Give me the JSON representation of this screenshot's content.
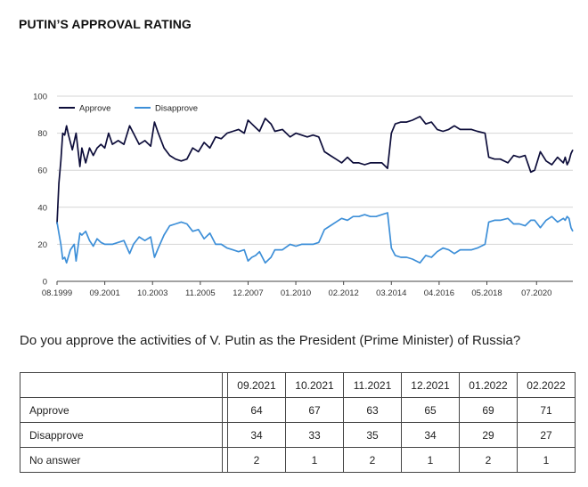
{
  "page": {
    "title": "PUTIN’S APPROVAL RATING"
  },
  "chart_data": {
    "type": "line",
    "title": "PUTIN’S APPROVAL RATING",
    "xlabel": "",
    "ylabel": "",
    "ylim": [
      0,
      100
    ],
    "yticks": [
      0,
      20,
      40,
      60,
      80,
      100
    ],
    "xticks": [
      "08.1999",
      "09.2001",
      "10.2003",
      "11.2005",
      "12.2007",
      "01.2010",
      "02.2012",
      "03.2014",
      "04.2016",
      "05.2018",
      "07.2020"
    ],
    "grid": true,
    "legend": "top-left",
    "x_range": [
      "1999-08",
      "2022-02"
    ],
    "series": [
      {
        "name": "Approve",
        "color": "#0d0d3a",
        "points": [
          [
            "1999-08",
            31
          ],
          [
            "1999-09",
            53
          ],
          [
            "1999-10",
            65
          ],
          [
            "1999-11",
            80
          ],
          [
            "1999-12",
            79
          ],
          [
            "2000-01",
            84
          ],
          [
            "2000-02",
            79
          ],
          [
            "2000-04",
            71
          ],
          [
            "2000-06",
            80
          ],
          [
            "2000-08",
            62
          ],
          [
            "2000-09",
            72
          ],
          [
            "2000-11",
            64
          ],
          [
            "2001-01",
            72
          ],
          [
            "2001-03",
            68
          ],
          [
            "2001-05",
            72
          ],
          [
            "2001-07",
            74
          ],
          [
            "2001-09",
            72
          ],
          [
            "2001-11",
            80
          ],
          [
            "2002-01",
            74
          ],
          [
            "2002-04",
            76
          ],
          [
            "2002-07",
            74
          ],
          [
            "2002-10",
            84
          ],
          [
            "2002-12",
            80
          ],
          [
            "2003-03",
            74
          ],
          [
            "2003-06",
            76
          ],
          [
            "2003-09",
            73
          ],
          [
            "2003-11",
            86
          ],
          [
            "2004-01",
            80
          ],
          [
            "2004-04",
            72
          ],
          [
            "2004-07",
            68
          ],
          [
            "2004-10",
            66
          ],
          [
            "2005-01",
            65
          ],
          [
            "2005-04",
            66
          ],
          [
            "2005-07",
            72
          ],
          [
            "2005-10",
            70
          ],
          [
            "2006-01",
            75
          ],
          [
            "2006-04",
            72
          ],
          [
            "2006-07",
            78
          ],
          [
            "2006-10",
            77
          ],
          [
            "2007-01",
            80
          ],
          [
            "2007-04",
            81
          ],
          [
            "2007-07",
            82
          ],
          [
            "2007-10",
            80
          ],
          [
            "2007-12",
            87
          ],
          [
            "2008-02",
            85
          ],
          [
            "2008-04",
            83
          ],
          [
            "2008-06",
            81
          ],
          [
            "2008-09",
            88
          ],
          [
            "2008-12",
            85
          ],
          [
            "2009-02",
            81
          ],
          [
            "2009-06",
            82
          ],
          [
            "2009-10",
            78
          ],
          [
            "2010-01",
            80
          ],
          [
            "2010-04",
            79
          ],
          [
            "2010-07",
            78
          ],
          [
            "2010-10",
            79
          ],
          [
            "2011-01",
            78
          ],
          [
            "2011-04",
            70
          ],
          [
            "2011-07",
            68
          ],
          [
            "2011-10",
            66
          ],
          [
            "2012-01",
            64
          ],
          [
            "2012-04",
            67
          ],
          [
            "2012-07",
            64
          ],
          [
            "2012-10",
            64
          ],
          [
            "2013-01",
            63
          ],
          [
            "2013-04",
            64
          ],
          [
            "2013-07",
            64
          ],
          [
            "2013-10",
            64
          ],
          [
            "2014-01",
            61
          ],
          [
            "2014-03",
            80
          ],
          [
            "2014-05",
            85
          ],
          [
            "2014-08",
            86
          ],
          [
            "2014-11",
            86
          ],
          [
            "2015-02",
            87
          ],
          [
            "2015-06",
            89
          ],
          [
            "2015-09",
            85
          ],
          [
            "2015-12",
            86
          ],
          [
            "2016-03",
            82
          ],
          [
            "2016-06",
            81
          ],
          [
            "2016-09",
            82
          ],
          [
            "2016-12",
            84
          ],
          [
            "2017-03",
            82
          ],
          [
            "2017-06",
            82
          ],
          [
            "2017-09",
            82
          ],
          [
            "2017-12",
            81
          ],
          [
            "2018-04",
            80
          ],
          [
            "2018-06",
            67
          ],
          [
            "2018-09",
            66
          ],
          [
            "2018-12",
            66
          ],
          [
            "2019-04",
            64
          ],
          [
            "2019-07",
            68
          ],
          [
            "2019-10",
            67
          ],
          [
            "2020-01",
            68
          ],
          [
            "2020-04",
            59
          ],
          [
            "2020-06",
            60
          ],
          [
            "2020-09",
            70
          ],
          [
            "2020-12",
            65
          ],
          [
            "2021-03",
            63
          ],
          [
            "2021-06",
            67
          ],
          [
            "2021-09",
            64
          ],
          [
            "2021-10",
            67
          ],
          [
            "2021-11",
            63
          ],
          [
            "2021-12",
            65
          ],
          [
            "2022-01",
            69
          ],
          [
            "2022-02",
            71
          ]
        ]
      },
      {
        "name": "Disapprove",
        "color": "#3d8fd8",
        "points": [
          [
            "1999-08",
            32
          ],
          [
            "1999-09",
            26
          ],
          [
            "1999-10",
            20
          ],
          [
            "1999-11",
            12
          ],
          [
            "1999-12",
            13
          ],
          [
            "2000-01",
            10
          ],
          [
            "2000-03",
            17
          ],
          [
            "2000-05",
            20
          ],
          [
            "2000-06",
            11
          ],
          [
            "2000-08",
            26
          ],
          [
            "2000-09",
            25
          ],
          [
            "2000-11",
            27
          ],
          [
            "2001-01",
            22
          ],
          [
            "2001-03",
            19
          ],
          [
            "2001-05",
            23
          ],
          [
            "2001-07",
            21
          ],
          [
            "2001-09",
            20
          ],
          [
            "2001-11",
            20
          ],
          [
            "2002-01",
            20
          ],
          [
            "2002-04",
            21
          ],
          [
            "2002-07",
            22
          ],
          [
            "2002-10",
            15
          ],
          [
            "2002-12",
            20
          ],
          [
            "2003-03",
            24
          ],
          [
            "2003-06",
            22
          ],
          [
            "2003-09",
            24
          ],
          [
            "2003-11",
            13
          ],
          [
            "2004-01",
            18
          ],
          [
            "2004-04",
            25
          ],
          [
            "2004-07",
            30
          ],
          [
            "2004-10",
            31
          ],
          [
            "2005-01",
            32
          ],
          [
            "2005-04",
            31
          ],
          [
            "2005-07",
            27
          ],
          [
            "2005-10",
            28
          ],
          [
            "2006-01",
            23
          ],
          [
            "2006-04",
            26
          ],
          [
            "2006-07",
            20
          ],
          [
            "2006-10",
            20
          ],
          [
            "2007-01",
            18
          ],
          [
            "2007-04",
            17
          ],
          [
            "2007-07",
            16
          ],
          [
            "2007-10",
            17
          ],
          [
            "2007-12",
            11
          ],
          [
            "2008-02",
            13
          ],
          [
            "2008-04",
            14
          ],
          [
            "2008-06",
            16
          ],
          [
            "2008-09",
            10
          ],
          [
            "2008-12",
            13
          ],
          [
            "2009-02",
            17
          ],
          [
            "2009-06",
            17
          ],
          [
            "2009-10",
            20
          ],
          [
            "2010-01",
            19
          ],
          [
            "2010-04",
            20
          ],
          [
            "2010-07",
            20
          ],
          [
            "2010-10",
            20
          ],
          [
            "2011-01",
            21
          ],
          [
            "2011-04",
            28
          ],
          [
            "2011-07",
            30
          ],
          [
            "2011-10",
            32
          ],
          [
            "2012-01",
            34
          ],
          [
            "2012-04",
            33
          ],
          [
            "2012-07",
            35
          ],
          [
            "2012-10",
            35
          ],
          [
            "2013-01",
            36
          ],
          [
            "2013-04",
            35
          ],
          [
            "2013-07",
            35
          ],
          [
            "2013-10",
            36
          ],
          [
            "2014-01",
            37
          ],
          [
            "2014-03",
            18
          ],
          [
            "2014-05",
            14
          ],
          [
            "2014-08",
            13
          ],
          [
            "2014-11",
            13
          ],
          [
            "2015-02",
            12
          ],
          [
            "2015-06",
            10
          ],
          [
            "2015-09",
            14
          ],
          [
            "2015-12",
            13
          ],
          [
            "2016-03",
            16
          ],
          [
            "2016-06",
            18
          ],
          [
            "2016-09",
            17
          ],
          [
            "2016-12",
            15
          ],
          [
            "2017-03",
            17
          ],
          [
            "2017-06",
            17
          ],
          [
            "2017-09",
            17
          ],
          [
            "2017-12",
            18
          ],
          [
            "2018-04",
            20
          ],
          [
            "2018-06",
            32
          ],
          [
            "2018-09",
            33
          ],
          [
            "2018-12",
            33
          ],
          [
            "2019-04",
            34
          ],
          [
            "2019-07",
            31
          ],
          [
            "2019-10",
            31
          ],
          [
            "2020-01",
            30
          ],
          [
            "2020-04",
            33
          ],
          [
            "2020-06",
            33
          ],
          [
            "2020-09",
            29
          ],
          [
            "2020-12",
            33
          ],
          [
            "2021-03",
            35
          ],
          [
            "2021-06",
            32
          ],
          [
            "2021-09",
            34
          ],
          [
            "2021-10",
            33
          ],
          [
            "2021-11",
            35
          ],
          [
            "2021-12",
            34
          ],
          [
            "2022-01",
            29
          ],
          [
            "2022-02",
            27
          ]
        ]
      }
    ]
  },
  "question": "Do you approve the activities of V. Putin as the President (Prime Minister) of Russia?",
  "table": {
    "columns": [
      "09.2021",
      "10.2021",
      "11.2021",
      "12.2021",
      "01.2022",
      "02.2022"
    ],
    "rows": [
      {
        "label": "Approve",
        "values": [
          "64",
          "67",
          "63",
          "65",
          "69",
          "71"
        ]
      },
      {
        "label": "Disapprove",
        "values": [
          "34",
          "33",
          "35",
          "34",
          "29",
          "27"
        ]
      },
      {
        "label": "No answer",
        "values": [
          "2",
          "1",
          "2",
          "1",
          "2",
          "1"
        ]
      }
    ]
  }
}
